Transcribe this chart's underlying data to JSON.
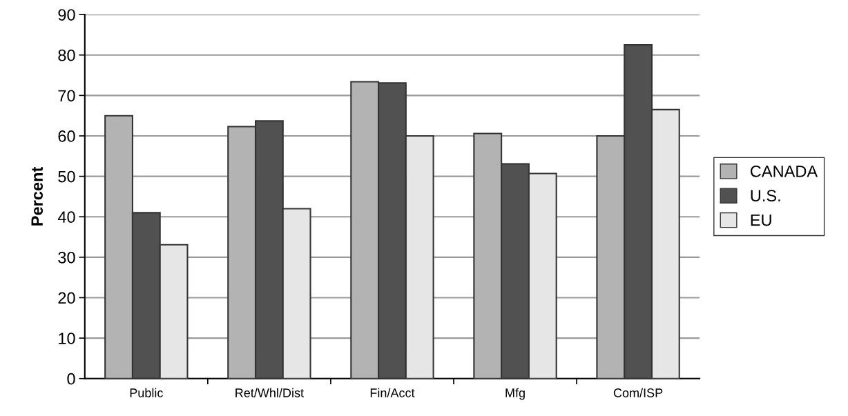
{
  "chart_data": {
    "type": "bar",
    "ylabel": "Percent",
    "categories": [
      "Public",
      "Ret/Whl/Dist",
      "Fin/Acct",
      "Mfg",
      "Com/ISP"
    ],
    "series": [
      {
        "name": "CANADA",
        "color": "#b3b3b3",
        "values": [
          65,
          62.3,
          73.4,
          60.6,
          60
        ]
      },
      {
        "name": "U.S.",
        "color": "#515151",
        "values": [
          41,
          63.7,
          73.1,
          53.1,
          82.5
        ]
      },
      {
        "name": "EU",
        "color": "#e6e6e6",
        "values": [
          33.1,
          42,
          60,
          50.7,
          66.5
        ]
      }
    ],
    "ylim": [
      0,
      90
    ],
    "yticks": [
      0,
      10,
      20,
      30,
      40,
      50,
      60,
      70,
      80,
      90
    ],
    "grid": "y",
    "legend": "right"
  }
}
